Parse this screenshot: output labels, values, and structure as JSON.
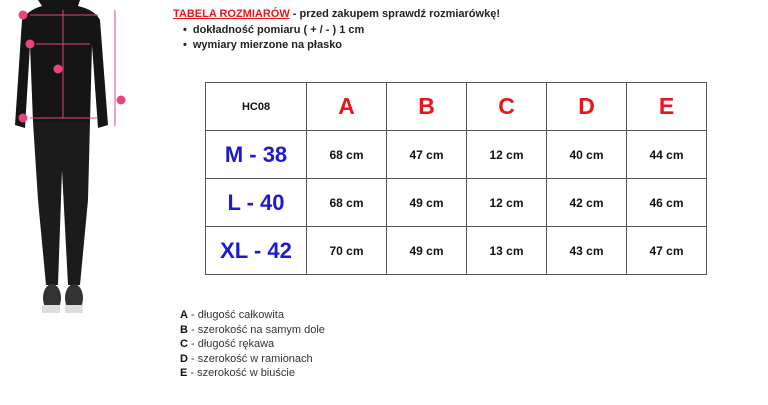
{
  "header": {
    "title": "TABELA ROZMIARÓW",
    "subtitle": " - przed zakupem sprawdź rozmiarówkę!",
    "bullets": [
      "dokładność pomiaru ( + / - ) 1 cm",
      "wymiary mierzone na płasko"
    ]
  },
  "figure": {
    "markers": [
      "A",
      "B",
      "C",
      "D",
      "E"
    ],
    "accent": "#e8457a"
  },
  "table": {
    "code": "HC08",
    "columns": [
      "A",
      "B",
      "C",
      "D",
      "E"
    ],
    "rows": [
      {
        "size": "M - 38",
        "values": [
          "68 cm",
          "47 cm",
          "12 cm",
          "40 cm",
          "44 cm"
        ]
      },
      {
        "size": "L - 40",
        "values": [
          "68 cm",
          "49 cm",
          "12 cm",
          "42 cm",
          "46 cm"
        ]
      },
      {
        "size": "XL - 42",
        "values": [
          "70 cm",
          "49 cm",
          "13 cm",
          "43 cm",
          "47 cm"
        ]
      }
    ]
  },
  "legend": [
    {
      "key": "A",
      "text": " - długość całkowita"
    },
    {
      "key": "B",
      "text": " - szerokość na samym dole"
    },
    {
      "key": "C",
      "text": " - długość rękawa"
    },
    {
      "key": "D",
      "text": " - szerokość w ramionach"
    },
    {
      "key": "E",
      "text": " - szerokość w biuście"
    }
  ],
  "colors": {
    "title": "#e8141e",
    "size": "#1a1ad6",
    "header": "#e8141e"
  }
}
